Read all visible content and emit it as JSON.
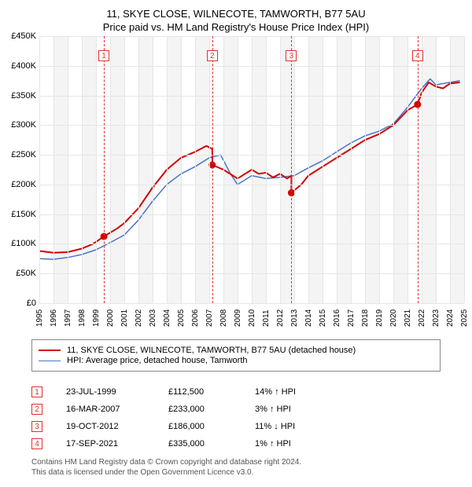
{
  "title_line1": "11, SKYE CLOSE, WILNECOTE, TAMWORTH, B77 5AU",
  "title_line2": "Price paid vs. HM Land Registry's House Price Index (HPI)",
  "chart": {
    "type": "line",
    "background_color": "#ffffff",
    "band_color": "#f4f4f4",
    "grid_color": "#e6e6e6",
    "dashed_color": "#e03030",
    "x_years": [
      1995,
      1996,
      1997,
      1998,
      1999,
      2000,
      2001,
      2002,
      2003,
      2004,
      2005,
      2006,
      2007,
      2008,
      2009,
      2010,
      2011,
      2012,
      2013,
      2014,
      2015,
      2016,
      2017,
      2018,
      2019,
      2020,
      2021,
      2022,
      2023,
      2024,
      2025
    ],
    "y_min": 0,
    "y_max": 450000,
    "y_step": 50000,
    "y_labels": [
      "£0",
      "£50K",
      "£100K",
      "£150K",
      "£200K",
      "£250K",
      "£300K",
      "£350K",
      "£400K",
      "£450K"
    ],
    "series": [
      {
        "name": "price_paid",
        "color": "#d00000",
        "width": 2,
        "points": [
          [
            1995.0,
            88000
          ],
          [
            1996.0,
            85000
          ],
          [
            1997.0,
            86000
          ],
          [
            1998.0,
            92000
          ],
          [
            1998.8,
            100000
          ],
          [
            1999.56,
            112500
          ],
          [
            2000.5,
            126000
          ],
          [
            2001.0,
            135000
          ],
          [
            2002.0,
            160000
          ],
          [
            2003.0,
            195000
          ],
          [
            2004.0,
            225000
          ],
          [
            2005.0,
            245000
          ],
          [
            2006.0,
            255000
          ],
          [
            2006.8,
            265000
          ],
          [
            2007.21,
            260000
          ],
          [
            2007.22,
            233000
          ],
          [
            2008.0,
            225000
          ],
          [
            2009.0,
            210000
          ],
          [
            2010.0,
            225000
          ],
          [
            2010.5,
            218000
          ],
          [
            2011.0,
            220000
          ],
          [
            2011.5,
            212000
          ],
          [
            2012.0,
            218000
          ],
          [
            2012.5,
            210000
          ],
          [
            2012.8,
            215000
          ],
          [
            2012.801,
            186000
          ],
          [
            2013.5,
            200000
          ],
          [
            2014.0,
            215000
          ],
          [
            2015.0,
            230000
          ],
          [
            2016.0,
            245000
          ],
          [
            2017.0,
            260000
          ],
          [
            2018.0,
            275000
          ],
          [
            2019.0,
            285000
          ],
          [
            2020.0,
            300000
          ],
          [
            2021.0,
            325000
          ],
          [
            2021.71,
            335000
          ],
          [
            2022.0,
            355000
          ],
          [
            2022.5,
            372000
          ],
          [
            2023.0,
            365000
          ],
          [
            2023.5,
            362000
          ],
          [
            2024.0,
            370000
          ],
          [
            2024.7,
            372000
          ]
        ]
      },
      {
        "name": "hpi",
        "color": "#4a74c9",
        "width": 1.5,
        "points": [
          [
            1995.0,
            75000
          ],
          [
            1996.0,
            74000
          ],
          [
            1997.0,
            77000
          ],
          [
            1998.0,
            82000
          ],
          [
            1999.0,
            90000
          ],
          [
            2000.0,
            102000
          ],
          [
            2001.0,
            115000
          ],
          [
            2002.0,
            140000
          ],
          [
            2003.0,
            172000
          ],
          [
            2004.0,
            200000
          ],
          [
            2005.0,
            218000
          ],
          [
            2006.0,
            230000
          ],
          [
            2007.0,
            245000
          ],
          [
            2007.8,
            250000
          ],
          [
            2008.5,
            218000
          ],
          [
            2009.0,
            200000
          ],
          [
            2010.0,
            215000
          ],
          [
            2011.0,
            210000
          ],
          [
            2012.0,
            212000
          ],
          [
            2013.0,
            215000
          ],
          [
            2014.0,
            228000
          ],
          [
            2015.0,
            240000
          ],
          [
            2016.0,
            255000
          ],
          [
            2017.0,
            270000
          ],
          [
            2018.0,
            282000
          ],
          [
            2019.0,
            290000
          ],
          [
            2020.0,
            302000
          ],
          [
            2021.0,
            330000
          ],
          [
            2022.0,
            362000
          ],
          [
            2022.6,
            378000
          ],
          [
            2023.0,
            368000
          ],
          [
            2024.0,
            372000
          ],
          [
            2024.7,
            375000
          ]
        ]
      }
    ],
    "sale_markers": [
      {
        "n": "1",
        "x": 1999.56,
        "y": 112500
      },
      {
        "n": "2",
        "x": 2007.21,
        "y": 233000
      },
      {
        "n": "3",
        "x": 2012.8,
        "y": 186000
      },
      {
        "n": "4",
        "x": 2021.71,
        "y": 335000
      }
    ]
  },
  "legend": {
    "items": [
      {
        "color": "#d00000",
        "label": "11, SKYE CLOSE, WILNECOTE, TAMWORTH, B77 5AU (detached house)"
      },
      {
        "color": "#4a74c9",
        "label": "HPI: Average price, detached house, Tamworth"
      }
    ]
  },
  "sales_table": [
    {
      "n": "1",
      "date": "23-JUL-1999",
      "price": "£112,500",
      "diff": "14% ↑ HPI"
    },
    {
      "n": "2",
      "date": "16-MAR-2007",
      "price": "£233,000",
      "diff": "3% ↑ HPI"
    },
    {
      "n": "3",
      "date": "19-OCT-2012",
      "price": "£186,000",
      "diff": "11% ↓ HPI"
    },
    {
      "n": "4",
      "date": "17-SEP-2021",
      "price": "£335,000",
      "diff": "1% ↑ HPI"
    }
  ],
  "footer_line1": "Contains HM Land Registry data © Crown copyright and database right 2024.",
  "footer_line2": "This data is licensed under the Open Government Licence v3.0."
}
